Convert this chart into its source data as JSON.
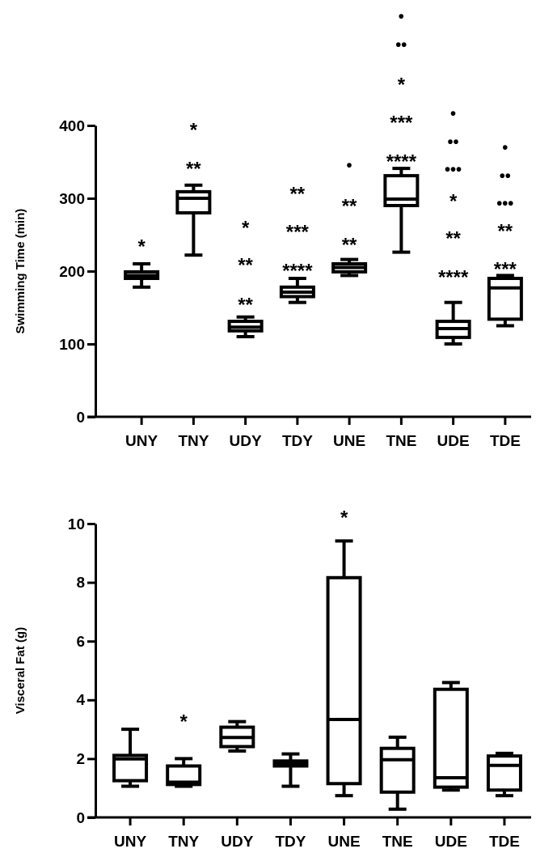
{
  "chart_data": [
    {
      "type": "box",
      "ylabel": "Swimming Time (min)",
      "categories": [
        "UNY",
        "TNY",
        "UDY",
        "TDY",
        "UNE",
        "TNE",
        "UDE",
        "TDE"
      ],
      "ylim": [
        0,
        400
      ],
      "yticks": [
        0,
        100,
        200,
        300,
        400
      ],
      "boxes": [
        {
          "low": 178,
          "q1": 190,
          "median": 194,
          "q3": 199,
          "high": 210
        },
        {
          "low": 222,
          "q1": 280,
          "median": 300,
          "q3": 309,
          "high": 318
        },
        {
          "low": 110,
          "q1": 118,
          "median": 123,
          "q3": 131,
          "high": 137
        },
        {
          "low": 157,
          "q1": 165,
          "median": 171,
          "q3": 178,
          "high": 190
        },
        {
          "low": 194,
          "q1": 199,
          "median": 205,
          "q3": 210,
          "high": 216
        },
        {
          "low": 226,
          "q1": 290,
          "median": 299,
          "q3": 331,
          "high": 341
        },
        {
          "low": 100,
          "q1": 109,
          "median": 121,
          "q3": 131,
          "high": 157
        },
        {
          "low": 125,
          "q1": 134,
          "median": 177,
          "q3": 190,
          "high": 194
        }
      ],
      "annotations": [
        "*",
        "*",
        "**",
        "*",
        "**",
        "**",
        "**",
        "***",
        "****",
        "•",
        "**",
        "**",
        "•",
        "••",
        "*",
        "***",
        "****",
        "•",
        "••",
        "•••",
        "*",
        "**",
        "****",
        "•",
        "••",
        "•••",
        "**",
        "***"
      ]
    },
    {
      "type": "box",
      "ylabel": "Visceral Fat (g)",
      "categories": [
        "UNY",
        "TNY",
        "UDY",
        "TDY",
        "UNE",
        "TNE",
        "UDE",
        "TDE"
      ],
      "ylim": [
        0,
        10
      ],
      "yticks": [
        0,
        2,
        4,
        6,
        8,
        10
      ],
      "boxes": [
        {
          "low": 1.06,
          "q1": 1.25,
          "median": 1.99,
          "q3": 2.11,
          "high": 3.0
        },
        {
          "low": 1.06,
          "q1": 1.12,
          "median": 1.2,
          "q3": 1.75,
          "high": 2.0
        },
        {
          "low": 2.26,
          "q1": 2.41,
          "median": 2.72,
          "q3": 3.07,
          "high": 3.26
        },
        {
          "low": 1.06,
          "q1": 1.75,
          "median": 1.84,
          "q3": 1.92,
          "high": 2.16
        },
        {
          "low": 0.74,
          "q1": 1.15,
          "median": 3.33,
          "q3": 8.16,
          "high": 9.41
        },
        {
          "low": 0.28,
          "q1": 0.86,
          "median": 1.96,
          "q3": 2.35,
          "high": 2.73
        },
        {
          "low": 0.93,
          "q1": 1.03,
          "median": 1.35,
          "q3": 4.36,
          "high": 4.59
        },
        {
          "low": 0.74,
          "q1": 0.93,
          "median": 1.77,
          "q3": 2.09,
          "high": 2.18
        }
      ],
      "annotations": [
        "*",
        "*"
      ]
    }
  ]
}
